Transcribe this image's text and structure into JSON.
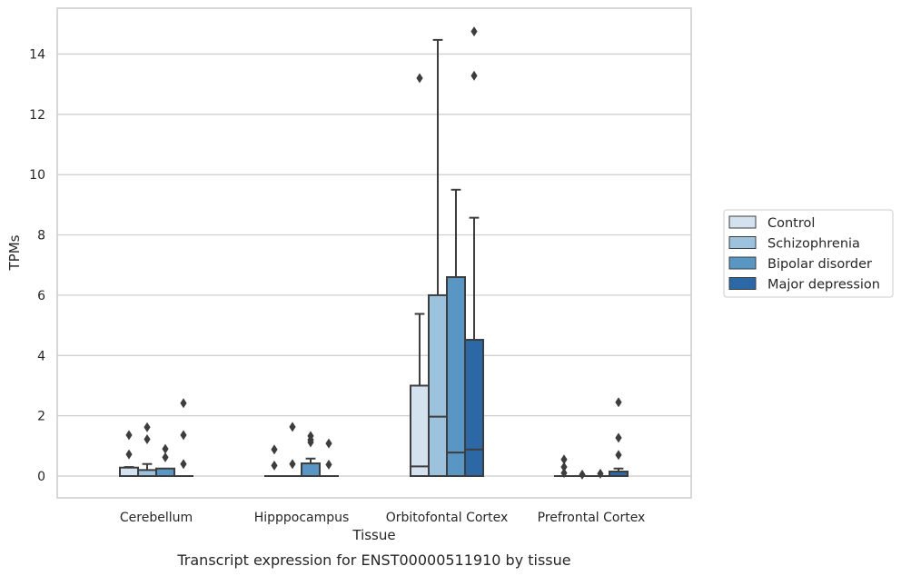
{
  "caption": "Transcript expression for ENST00000511910 by tissue",
  "chart_data": {
    "type": "box",
    "xlabel": "Tissue",
    "ylabel": "TPMs",
    "ylim": [
      -0.7,
      15.5
    ],
    "yticks": [
      0,
      2,
      4,
      6,
      8,
      10,
      12,
      14
    ],
    "grid": "horizontal",
    "legend_position": "right",
    "categories": [
      "Cerebellum",
      "Hipppocampus",
      "Orbitofontal Cortex",
      "Prefrontal Cortex"
    ],
    "series": [
      {
        "name": "Control",
        "color": "#d4e2f0",
        "boxes": [
          {
            "q1": 0,
            "median": 0,
            "q3": 0.28,
            "whisker_low": 0,
            "whisker_high": 0.3,
            "outliers": [
              0.72,
              1.36
            ]
          },
          {
            "q1": 0,
            "median": 0,
            "q3": 0,
            "whisker_low": 0,
            "whisker_high": 0,
            "outliers": [
              0.35,
              0.88
            ]
          },
          {
            "q1": 0,
            "median": 0.32,
            "q3": 3.0,
            "whisker_low": 0,
            "whisker_high": 5.38,
            "outliers": [
              13.2
            ]
          },
          {
            "q1": 0,
            "median": 0,
            "q3": 0,
            "whisker_low": 0,
            "whisker_high": 0,
            "outliers": [
              0.1,
              0.3,
              0.55
            ]
          }
        ]
      },
      {
        "name": "Schizophrenia",
        "color": "#9cc2de",
        "boxes": [
          {
            "q1": 0,
            "median": 0,
            "q3": 0.2,
            "whisker_low": 0,
            "whisker_high": 0.4,
            "outliers": [
              1.22,
              1.62
            ]
          },
          {
            "q1": 0,
            "median": 0,
            "q3": 0,
            "whisker_low": 0,
            "whisker_high": 0,
            "outliers": [
              0.4,
              1.63
            ]
          },
          {
            "q1": 0,
            "median": 1.97,
            "q3": 6.0,
            "whisker_low": 0,
            "whisker_high": 14.47,
            "outliers": []
          },
          {
            "q1": 0,
            "median": 0,
            "q3": 0,
            "whisker_low": 0,
            "whisker_high": 0,
            "outliers": [
              0.05
            ]
          }
        ]
      },
      {
        "name": "Bipolar disorder",
        "color": "#5a96c4",
        "boxes": [
          {
            "q1": 0,
            "median": 0,
            "q3": 0.25,
            "whisker_low": 0,
            "whisker_high": 0.25,
            "outliers": [
              0.62,
              0.9
            ]
          },
          {
            "q1": 0,
            "median": 0,
            "q3": 0.42,
            "whisker_low": 0,
            "whisker_high": 0.58,
            "outliers": [
              1.12,
              1.2,
              1.33
            ]
          },
          {
            "q1": 0,
            "median": 0.78,
            "q3": 6.6,
            "whisker_low": 0,
            "whisker_high": 9.5,
            "outliers": []
          },
          {
            "q1": 0,
            "median": 0,
            "q3": 0,
            "whisker_low": 0,
            "whisker_high": 0,
            "outliers": [
              0.08
            ]
          }
        ]
      },
      {
        "name": "Major depression",
        "color": "#2c68a6",
        "boxes": [
          {
            "q1": 0,
            "median": 0,
            "q3": 0,
            "whisker_low": 0,
            "whisker_high": 0,
            "outliers": [
              0.4,
              1.36,
              2.42
            ]
          },
          {
            "q1": 0,
            "median": 0,
            "q3": 0,
            "whisker_low": 0,
            "whisker_high": 0,
            "outliers": [
              0.38,
              1.08
            ]
          },
          {
            "q1": 0,
            "median": 0.88,
            "q3": 4.52,
            "whisker_low": 0,
            "whisker_high": 8.57,
            "outliers": [
              13.28,
              14.75
            ]
          },
          {
            "q1": 0,
            "median": 0,
            "q3": 0.15,
            "whisker_low": 0,
            "whisker_high": 0.25,
            "outliers": [
              0.7,
              1.27,
              2.45
            ]
          }
        ]
      }
    ]
  }
}
